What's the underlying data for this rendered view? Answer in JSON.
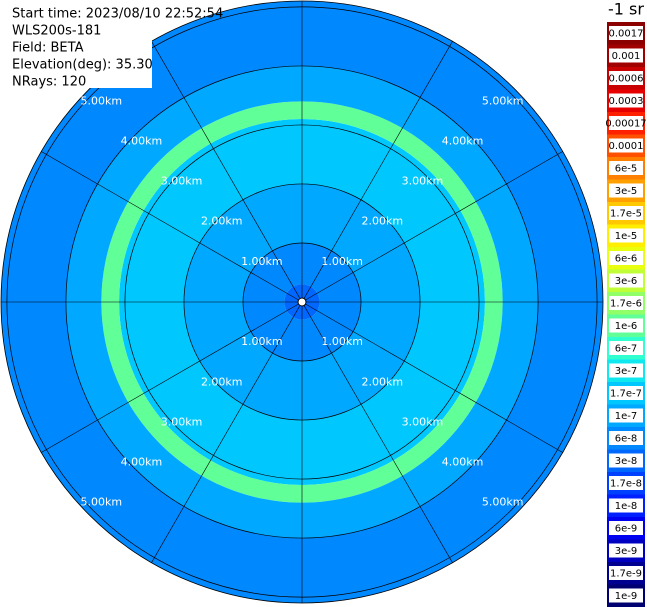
{
  "chart_data": {
    "type": "ppi",
    "info": [
      "Start time: 2023/08/10 22:52:54",
      "WLS200s-181",
      "Field: BETA",
      "Elevation(deg): 35.30",
      "NRays: 120"
    ],
    "colorbar_title": "-1 sr",
    "rlim": [
      0,
      5.1
    ],
    "rticks": [
      {
        "value": 1,
        "label": "1.00km"
      },
      {
        "value": 2,
        "label": "2.00km"
      },
      {
        "value": 3,
        "label": "3.00km"
      },
      {
        "value": 4,
        "label": "4.00km"
      },
      {
        "value": 5,
        "label": "5.00km"
      }
    ],
    "range_profile": {
      "range_km": [
        0,
        0.3,
        1,
        2,
        3.1,
        3.4,
        4,
        5.1
      ],
      "beta": [
        3e-08,
        6e-08,
        1e-07,
        1.7e-07,
        1e-06,
        1e-07,
        6e-08
      ]
    },
    "colorbar": [
      {
        "value": 0.0017,
        "label": "0.0017",
        "color": "#8b0000"
      },
      {
        "value": 0.001,
        "label": "0.001",
        "color": "#a00000"
      },
      {
        "value": 0.0006,
        "label": "0.0006",
        "color": "#c80000"
      },
      {
        "value": 0.0003,
        "label": "0.0003",
        "color": "#e60000"
      },
      {
        "value": 0.00017,
        "label": "0.00017",
        "color": "#ff2000"
      },
      {
        "value": 0.0001,
        "label": "0.0001",
        "color": "#ff5000"
      },
      {
        "value": 6e-05,
        "label": "6e-5",
        "color": "#ff8000"
      },
      {
        "value": 3e-05,
        "label": "3e-5",
        "color": "#ffa000"
      },
      {
        "value": 1.7e-05,
        "label": "1.7e-5",
        "color": "#ffc800"
      },
      {
        "value": 1e-05,
        "label": "1e-5",
        "color": "#ffee00"
      },
      {
        "value": 6e-06,
        "label": "6e-6",
        "color": "#e8ff10"
      },
      {
        "value": 3e-06,
        "label": "3e-6",
        "color": "#c0ff38"
      },
      {
        "value": 1.7e-06,
        "label": "1.7e-6",
        "color": "#90ff68"
      },
      {
        "value": 1e-06,
        "label": "1e-6",
        "color": "#60ff98"
      },
      {
        "value": 6e-07,
        "label": "6e-7",
        "color": "#30ffd0"
      },
      {
        "value": 3e-07,
        "label": "3e-7",
        "color": "#10e8f0"
      },
      {
        "value": 1.7e-07,
        "label": "1.7e-7",
        "color": "#00c8ff"
      },
      {
        "value": 1e-07,
        "label": "1e-7",
        "color": "#00a8ff"
      },
      {
        "value": 6e-08,
        "label": "6e-8",
        "color": "#0088ff"
      },
      {
        "value": 3e-08,
        "label": "3e-8",
        "color": "#0068ff"
      },
      {
        "value": 1.7e-08,
        "label": "1.7e-8",
        "color": "#0040ff"
      },
      {
        "value": 1e-08,
        "label": "1e-8",
        "color": "#0020ff"
      },
      {
        "value": 6e-09,
        "label": "6e-9",
        "color": "#0000f0"
      },
      {
        "value": 3e-09,
        "label": "3e-9",
        "color": "#0000c0"
      },
      {
        "value": 1.7e-09,
        "label": "1.7e-9",
        "color": "#000090"
      },
      {
        "value": 1e-09,
        "label": "1e-9",
        "color": "#000070"
      }
    ]
  }
}
